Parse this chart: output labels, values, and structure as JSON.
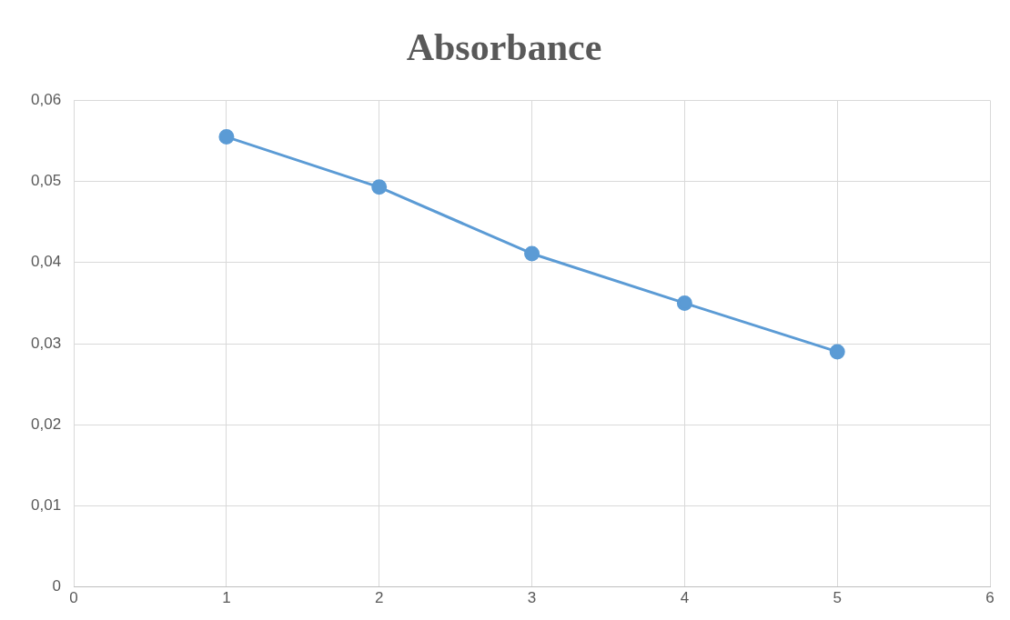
{
  "chart_data": {
    "type": "line",
    "title": "Absorbance",
    "x": [
      1,
      2,
      3,
      4,
      5
    ],
    "series": [
      {
        "color": "#5b9bd5",
        "values": [
          0.0555,
          0.0493,
          0.0411,
          0.035,
          0.029
        ]
      }
    ],
    "xlim": [
      0,
      6
    ],
    "xticks": [
      0,
      1,
      2,
      3,
      4,
      5,
      6
    ],
    "ylim": [
      0,
      0.06
    ],
    "yticks": [
      {
        "value": 0,
        "label": "0"
      },
      {
        "value": 0.01,
        "label": "0,01"
      },
      {
        "value": 0.02,
        "label": "0,02"
      },
      {
        "value": 0.03,
        "label": "0,03"
      },
      {
        "value": 0.04,
        "label": "0,04"
      },
      {
        "value": 0.05,
        "label": "0,05"
      },
      {
        "value": 0.06,
        "label": "0,06"
      }
    ],
    "grid": true,
    "marker": "circle",
    "line_style": "solid",
    "legend": false
  }
}
